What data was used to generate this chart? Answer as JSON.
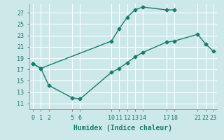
{
  "xlabel": "Humidex (Indice chaleur)",
  "bg_color": "#cce8e8",
  "grid_color": "#ffffff",
  "line_color": "#1a7a6e",
  "xlim": [
    -0.5,
    23.5
  ],
  "ylim": [
    10.0,
    28.5
  ],
  "xticks": [
    0,
    1,
    2,
    5,
    6,
    10,
    11,
    12,
    13,
    14,
    17,
    18,
    21,
    22,
    23
  ],
  "yticks": [
    11,
    13,
    15,
    17,
    19,
    21,
    23,
    25,
    27
  ],
  "line1_x": [
    0,
    1,
    10,
    11,
    12,
    13,
    14,
    17,
    18
  ],
  "line1_y": [
    18.0,
    17.2,
    22.0,
    24.2,
    26.2,
    27.5,
    28.0,
    27.5,
    27.5
  ],
  "line2_x": [
    0,
    1,
    2,
    5,
    6,
    10,
    11,
    12,
    13,
    14,
    17,
    18,
    21,
    22,
    23
  ],
  "line2_y": [
    18.0,
    17.2,
    14.2,
    12.0,
    11.8,
    16.5,
    17.2,
    18.2,
    19.2,
    20.0,
    21.8,
    22.0,
    23.2,
    21.5,
    20.2
  ],
  "xlabel_fontsize": 7,
  "tick_fontsize": 6
}
